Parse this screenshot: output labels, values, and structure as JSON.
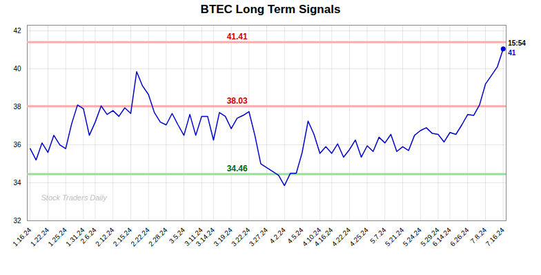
{
  "chart_data": {
    "type": "line",
    "title": "BTEC Long Term Signals",
    "categories": [
      "1.16.24",
      null,
      null,
      "1.22.24",
      null,
      null,
      "1.25.24",
      null,
      null,
      "1.31.24",
      null,
      "2.6.24",
      null,
      null,
      "2.12.24",
      null,
      null,
      "2.15.24",
      null,
      null,
      "2.22.24",
      null,
      null,
      "2.28.24",
      null,
      null,
      "3.5.24",
      null,
      null,
      "3.11.24",
      null,
      "3.14.24",
      null,
      null,
      "3.19.24",
      null,
      null,
      "3.22.24",
      null,
      null,
      "3.27.24",
      null,
      null,
      "4.2.24",
      null,
      null,
      "4.5.24",
      null,
      null,
      "4.10.24",
      null,
      "4.16.24",
      null,
      null,
      "4.22.24",
      null,
      null,
      "4.25.24",
      null,
      null,
      "5.7.24",
      null,
      null,
      "5.21.24",
      null,
      null,
      "5.24.24",
      null,
      null,
      "5.29.24",
      null,
      "6.14.24",
      null,
      null,
      "6.26.24",
      null,
      null,
      "7.8.24",
      null,
      null,
      "7.16.24"
    ],
    "values": [
      35.8,
      35.2,
      36.1,
      35.6,
      36.5,
      36.0,
      35.8,
      37.1,
      38.1,
      37.9,
      36.5,
      37.2,
      38.05,
      37.6,
      37.8,
      37.5,
      37.95,
      37.65,
      39.85,
      39.1,
      38.65,
      37.7,
      37.2,
      37.05,
      37.65,
      37.05,
      36.5,
      37.6,
      36.5,
      37.5,
      37.5,
      36.25,
      37.7,
      37.5,
      36.85,
      37.4,
      37.55,
      37.75,
      36.5,
      35.0,
      34.8,
      34.6,
      34.4,
      33.85,
      34.5,
      34.5,
      35.6,
      37.25,
      36.55,
      35.55,
      35.9,
      35.55,
      36.05,
      35.35,
      35.75,
      36.25,
      35.35,
      35.95,
      35.65,
      36.4,
      36.1,
      36.55,
      35.65,
      35.9,
      35.7,
      36.5,
      36.75,
      36.9,
      36.6,
      36.55,
      36.15,
      36.65,
      36.55,
      37.05,
      37.6,
      37.55,
      38.1,
      39.2,
      39.65,
      40.1,
      41.05
    ],
    "color": "#0000cc",
    "hlines": [
      {
        "value": 41.41,
        "label": "41.41",
        "color": "#ffaaaa",
        "label_color": "#cc0000"
      },
      {
        "value": 38.03,
        "label": "38.03",
        "color": "#ffaaaa",
        "label_color": "#cc0000"
      },
      {
        "value": 34.46,
        "label": "34.46",
        "color": "#99dd99",
        "label_color": "#006600"
      }
    ],
    "last_point": {
      "color": "#0000cc",
      "time_label": "15:54",
      "value_label": "41"
    },
    "watermark": "Stock Traders Daily",
    "ylim": [
      32,
      42.3
    ],
    "yticks": [
      32,
      34,
      36,
      38,
      40,
      42
    ],
    "grid": true
  }
}
